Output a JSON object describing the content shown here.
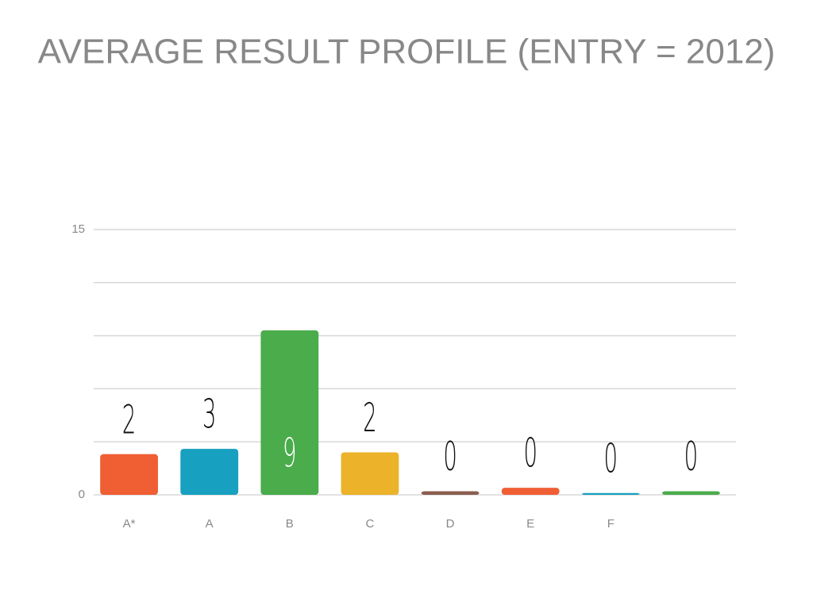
{
  "chart_data": {
    "type": "bar",
    "title": "AVERAGE RESULT PROFILE (ENTRY = 2012)",
    "categories": [
      "A*",
      "A",
      "B",
      "C",
      "D",
      "E",
      "F",
      null
    ],
    "values": [
      2.3,
      2.6,
      9.3,
      2.4,
      0.2,
      0.4,
      0.1,
      0.2
    ],
    "value_labels": [
      "2",
      "3",
      "9",
      "2",
      "0",
      "0",
      "0",
      "0"
    ],
    "colors": [
      "#f05f34",
      "#17a0bf",
      "#4aac4a",
      "#ebb22a",
      "#8b5e4f",
      "#f05f34",
      "#17a0bf",
      "#4aac4a"
    ],
    "ylim": [
      0,
      15
    ],
    "yticks": [
      0,
      15
    ],
    "grid_values": [
      0,
      3,
      6,
      9,
      12,
      15
    ],
    "grid": true
  }
}
